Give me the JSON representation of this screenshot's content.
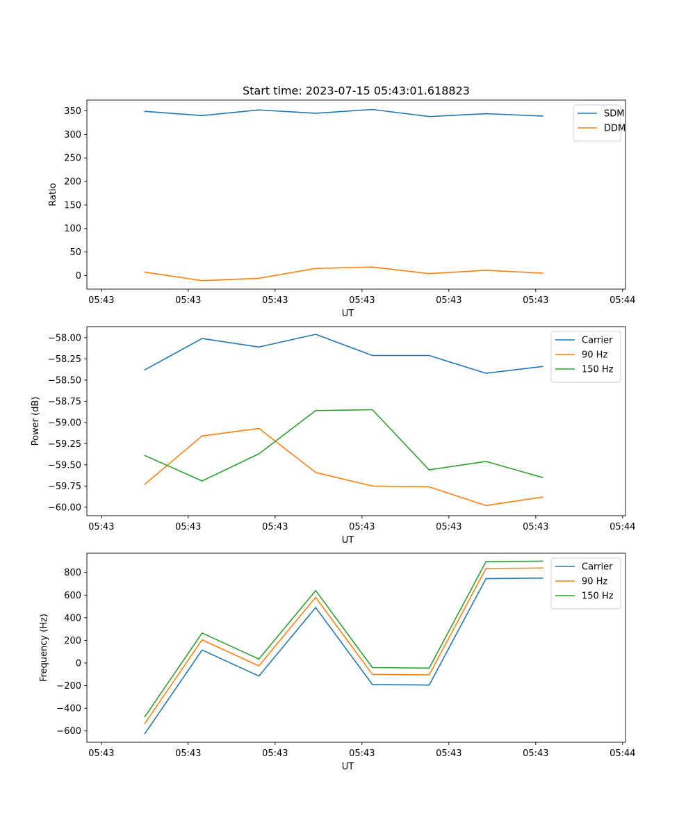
{
  "chart_data": [
    {
      "type": "line",
      "title": "Start time: 2023-07-15 05:43:01.618823",
      "xlabel": "UT",
      "ylabel": "Ratio",
      "xlim": [
        -0.75,
        8.55
      ],
      "ylim": [
        -29,
        373
      ],
      "x_ticks": [
        -0.5,
        1,
        2.5,
        4,
        5.5,
        7,
        8.5
      ],
      "x_tick_labels": [
        "05:43",
        "05:43",
        "05:43",
        "05:43",
        "05:43",
        "05:43",
        "05:44"
      ],
      "y_ticks": [
        0,
        50,
        100,
        150,
        200,
        250,
        300,
        350
      ],
      "y_tick_labels": [
        "0",
        "50",
        "100",
        "150",
        "200",
        "250",
        "300",
        "350"
      ],
      "x": [
        0.25,
        1.24,
        2.22,
        3.2,
        4.18,
        5.16,
        6.14,
        7.12
      ],
      "legend_position": "top-right",
      "series": [
        {
          "name": "SDM",
          "color": "#1f77b4",
          "values": [
            349,
            340,
            352,
            345,
            353,
            338,
            344,
            339
          ]
        },
        {
          "name": "DDM",
          "color": "#ff7f0e",
          "values": [
            7,
            -11,
            -6,
            15,
            18,
            4,
            11,
            5
          ]
        }
      ]
    },
    {
      "type": "line",
      "title": "",
      "xlabel": "UT",
      "ylabel": "Power (dB)",
      "xlim": [
        -0.75,
        8.55
      ],
      "ylim": [
        -60.1,
        -57.87
      ],
      "x_ticks": [
        -0.5,
        1,
        2.5,
        4,
        5.5,
        7,
        8.5
      ],
      "x_tick_labels": [
        "05:43",
        "05:43",
        "05:43",
        "05:43",
        "05:43",
        "05:43",
        "05:44"
      ],
      "y_ticks": [
        -60.0,
        -59.75,
        -59.5,
        -59.25,
        -59.0,
        -58.75,
        -58.5,
        -58.25,
        -58.0
      ],
      "y_tick_labels": [
        "−60.00",
        "−59.75",
        "−59.50",
        "−59.25",
        "−59.00",
        "−58.75",
        "−58.50",
        "−58.25",
        "−58.00"
      ],
      "x": [
        0.25,
        1.24,
        2.22,
        3.2,
        4.18,
        5.16,
        6.14,
        7.12
      ],
      "legend_position": "top-right",
      "series": [
        {
          "name": "Carrier",
          "color": "#1f77b4",
          "values": [
            -58.38,
            -58.01,
            -58.11,
            -57.96,
            -58.21,
            -58.21,
            -58.42,
            -58.34
          ]
        },
        {
          "name": "90 Hz",
          "color": "#ff7f0e",
          "values": [
            -59.73,
            -59.16,
            -59.07,
            -59.59,
            -59.75,
            -59.76,
            -59.98,
            -59.88
          ]
        },
        {
          "name": "150 Hz",
          "color": "#2ca02c",
          "values": [
            -59.39,
            -59.69,
            -59.37,
            -58.86,
            -58.85,
            -59.56,
            -59.46,
            -59.65
          ]
        }
      ]
    },
    {
      "type": "line",
      "title": "",
      "xlabel": "UT",
      "ylabel": "Frequency (Hz)",
      "xlim": [
        -0.75,
        8.55
      ],
      "ylim": [
        -700,
        970
      ],
      "x_ticks": [
        -0.5,
        1,
        2.5,
        4,
        5.5,
        7,
        8.5
      ],
      "x_tick_labels": [
        "05:43",
        "05:43",
        "05:43",
        "05:43",
        "05:43",
        "05:43",
        "05:44"
      ],
      "y_ticks": [
        -600,
        -400,
        -200,
        0,
        200,
        400,
        600,
        800
      ],
      "y_tick_labels": [
        "−600",
        "−400",
        "−200",
        "0",
        "200",
        "400",
        "600",
        "800"
      ],
      "x": [
        0.25,
        1.24,
        2.22,
        3.2,
        4.18,
        5.16,
        6.14,
        7.12
      ],
      "legend_position": "top-right",
      "series": [
        {
          "name": "Carrier",
          "color": "#1f77b4",
          "values": [
            -625,
            115,
            -115,
            490,
            -190,
            -195,
            745,
            750
          ]
        },
        {
          "name": "90 Hz",
          "color": "#ff7f0e",
          "values": [
            -535,
            205,
            -25,
            580,
            -100,
            -105,
            835,
            840
          ]
        },
        {
          "name": "150 Hz",
          "color": "#2ca02c",
          "values": [
            -475,
            265,
            35,
            640,
            -40,
            -45,
            895,
            900
          ]
        }
      ]
    }
  ]
}
